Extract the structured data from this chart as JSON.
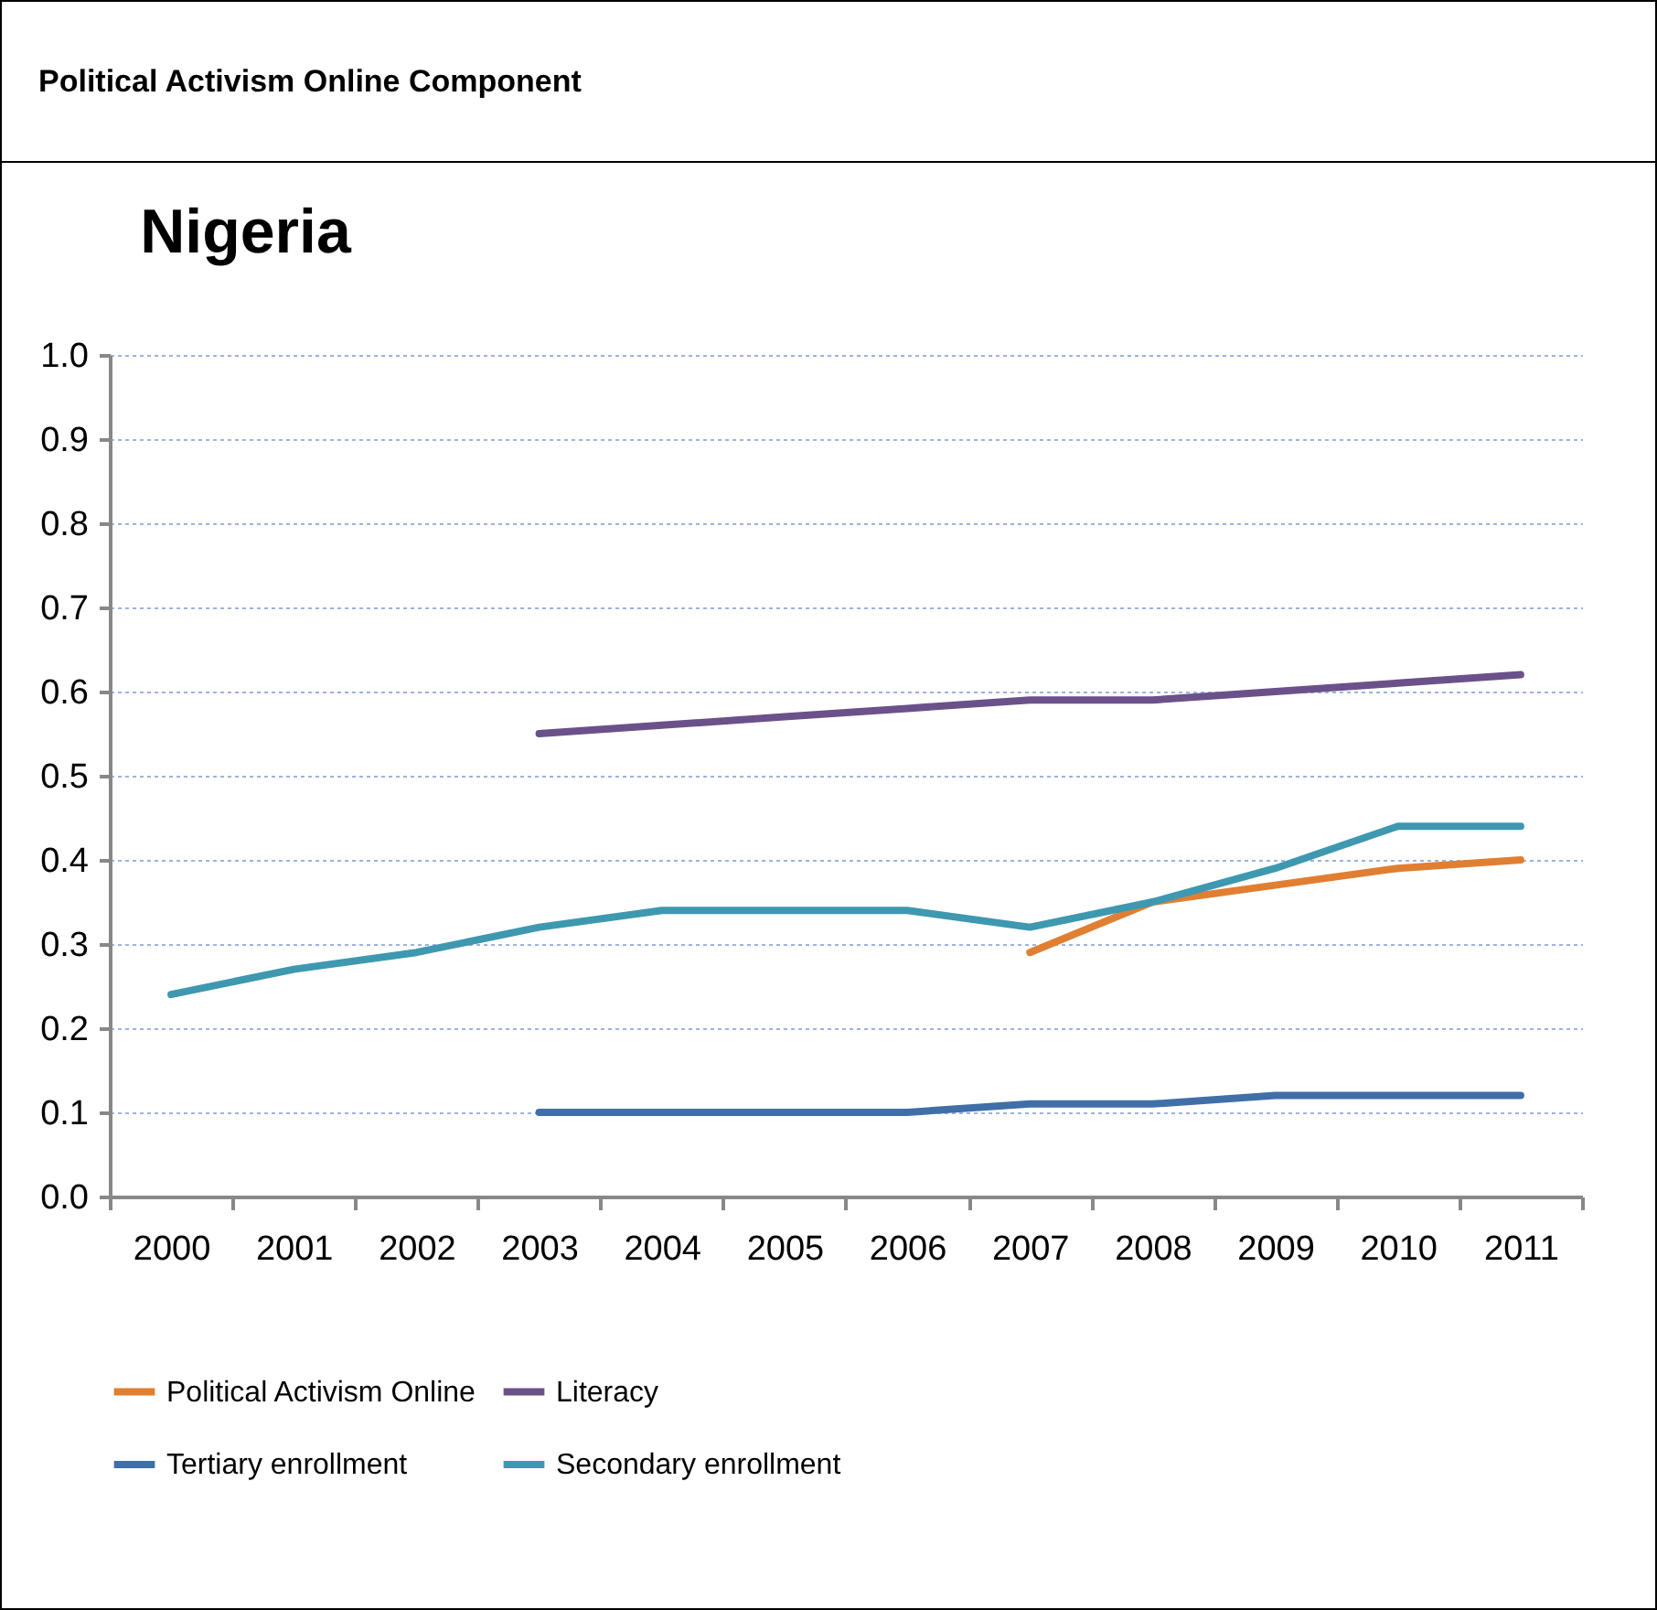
{
  "chart_data": {
    "type": "line",
    "title": "Political Activism Online Component",
    "subtitle": "Nigeria",
    "categories": [
      "2000",
      "2001",
      "2002",
      "2003",
      "2004",
      "2005",
      "2006",
      "2007",
      "2008",
      "2009",
      "2010",
      "2011"
    ],
    "series": [
      {
        "name": "Political Activism Online",
        "color": "#e07f32",
        "values": [
          null,
          null,
          null,
          null,
          null,
          null,
          null,
          0.29,
          0.35,
          0.37,
          0.39,
          0.4
        ]
      },
      {
        "name": "Literacy",
        "color": "#6b518a",
        "values": [
          null,
          null,
          null,
          0.55,
          0.56,
          0.57,
          0.58,
          0.59,
          0.59,
          0.6,
          0.61,
          0.62
        ]
      },
      {
        "name": "Tertiary enrollment",
        "color": "#406fa8",
        "values": [
          null,
          null,
          null,
          0.1,
          0.1,
          0.1,
          0.1,
          0.11,
          0.11,
          0.12,
          0.12,
          0.12
        ]
      },
      {
        "name": "Secondary enrollment",
        "color": "#3e98b0",
        "values": [
          0.24,
          0.27,
          0.29,
          0.32,
          0.34,
          0.34,
          0.34,
          0.32,
          0.35,
          0.39,
          0.44,
          0.44
        ]
      }
    ],
    "ylim": [
      0,
      1
    ],
    "yticks": [
      {
        "value": 0,
        "label": "0.0"
      },
      0.1,
      0.2,
      0.3,
      0.4,
      0.5,
      0.6,
      0.7,
      0.8,
      0.9,
      {
        "value": 1,
        "label": "1.0"
      }
    ],
    "grid": "y",
    "legend": "bottom",
    "marker": "none",
    "line_style": "solid"
  }
}
